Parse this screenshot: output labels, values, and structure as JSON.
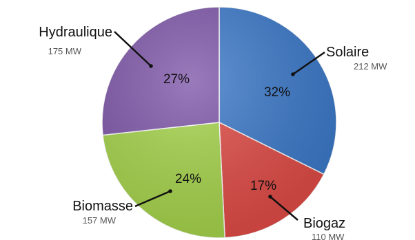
{
  "chart_data": {
    "type": "pie",
    "slices": [
      {
        "label": "Solaire",
        "value": 212,
        "value_label": "212 MW",
        "percent_label": "32%",
        "color": "#3a78c9"
      },
      {
        "label": "Biogaz",
        "value": 110,
        "value_label": "110 MW",
        "percent_label": "17%",
        "color": "#e04a45"
      },
      {
        "label": "Biomasse",
        "value": 157,
        "value_label": "157 MW",
        "percent_label": "24%",
        "color": "#a5d44a"
      },
      {
        "label": "Hydraulique",
        "value": 175,
        "value_label": "175 MW",
        "percent_label": "27%",
        "color": "#7d55a8"
      }
    ],
    "start_angle": "12 o'clock",
    "direction": "clockwise",
    "legend": "none"
  }
}
